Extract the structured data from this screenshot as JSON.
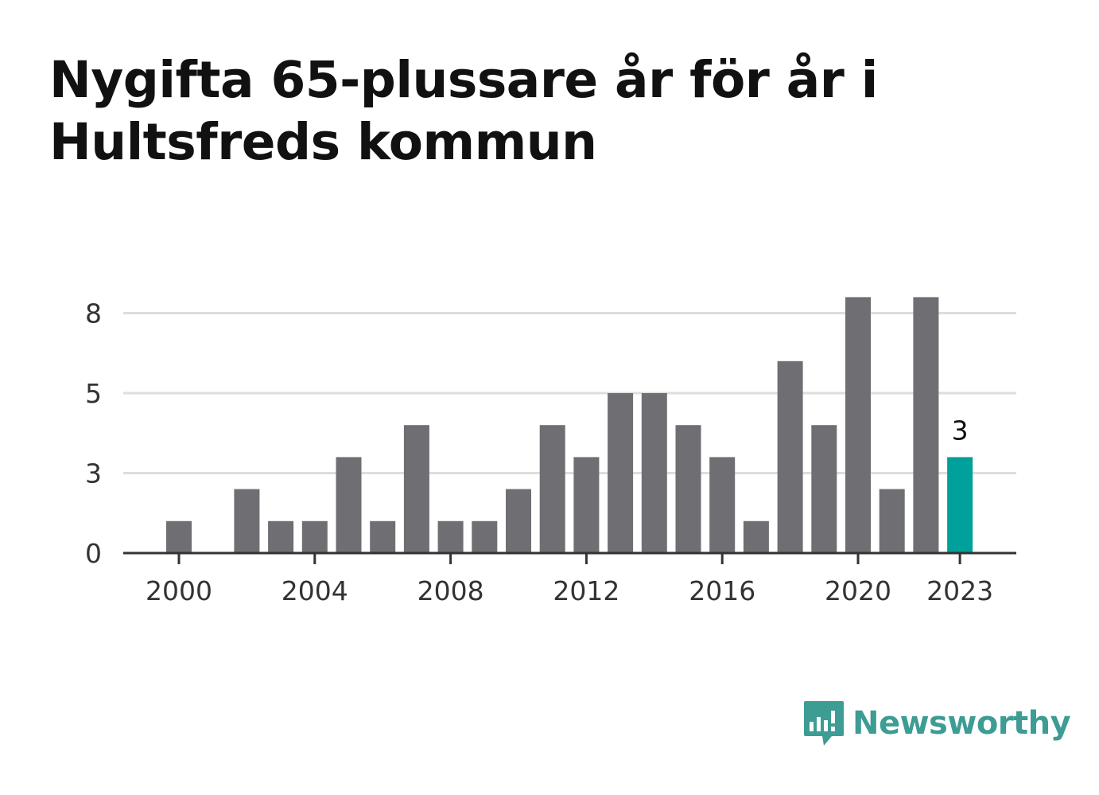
{
  "title": "Nygifta 65-plussare år för år i Hultsfreds kommun",
  "brand": {
    "name": "Newsworthy",
    "color": "#3d9c94",
    "icon": "bar-chart-speech-bubble-icon"
  },
  "chart_data": {
    "type": "bar",
    "title": "Nygifta 65-plussare år för år i Hultsfreds kommun",
    "xlabel": "",
    "ylabel": "",
    "categories": [
      2000,
      2001,
      2002,
      2003,
      2004,
      2005,
      2006,
      2007,
      2008,
      2009,
      2010,
      2011,
      2012,
      2013,
      2014,
      2015,
      2016,
      2017,
      2018,
      2019,
      2020,
      2021,
      2022,
      2023
    ],
    "values": [
      1,
      0,
      2,
      1,
      1,
      3,
      1,
      4,
      1,
      1,
      2,
      4,
      3,
      5,
      5,
      4,
      3,
      1,
      6,
      4,
      8,
      2,
      8,
      3
    ],
    "ylim": [
      0,
      8
    ],
    "y_ticks": [
      {
        "value": 0,
        "label": "0"
      },
      {
        "value": 2.5,
        "label": "3"
      },
      {
        "value": 5,
        "label": "5"
      },
      {
        "value": 7.5,
        "label": "8"
      }
    ],
    "x_ticks": [
      "2000",
      "2004",
      "2008",
      "2012",
      "2016",
      "2020",
      "2023"
    ],
    "highlight": {
      "category": 2023,
      "value_label": "3"
    },
    "colors": {
      "bar": "#6f6e73",
      "highlight": "#00a19a",
      "grid": "#dddddd",
      "axis": "#333333"
    },
    "grid": true,
    "legend": "none"
  }
}
